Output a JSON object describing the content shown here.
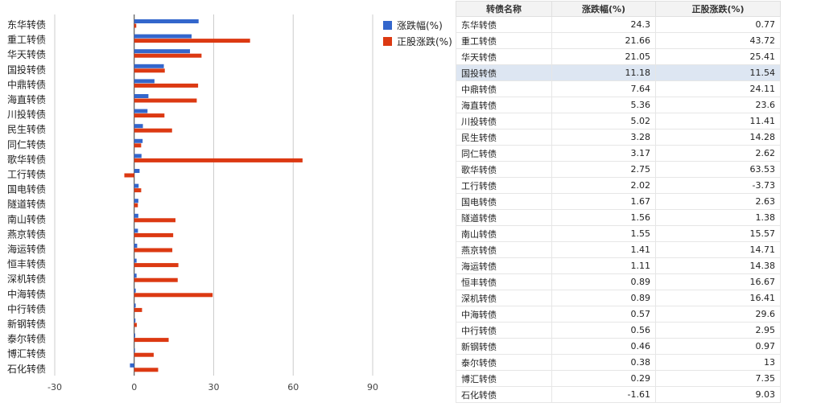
{
  "colors": {
    "change": "#3366cc",
    "stock": "#dc3912",
    "grid": "#cccccc",
    "highlight_row": "#dde6f2"
  },
  "legend": [
    {
      "label": "涨跌幅(%)",
      "color": "#3366cc"
    },
    {
      "label": "正股涨跌(%)",
      "color": "#dc3912"
    }
  ],
  "chart_data": {
    "type": "bar",
    "orientation": "horizontal",
    "categories": [
      "东华转债",
      "重工转债",
      "华天转债",
      "国投转债",
      "中鼎转债",
      "海直转债",
      "川投转债",
      "民生转债",
      "同仁转债",
      "歌华转债",
      "工行转债",
      "国电转债",
      "隧道转债",
      "南山转债",
      "燕京转债",
      "海运转债",
      "恒丰转债",
      "深机转债",
      "中海转债",
      "中行转债",
      "新钢转债",
      "泰尔转债",
      "博汇转债",
      "石化转债"
    ],
    "series": [
      {
        "name": "涨跌幅(%)",
        "values": [
          24.3,
          21.66,
          21.05,
          11.18,
          7.64,
          5.36,
          5.02,
          3.28,
          3.17,
          2.75,
          2.02,
          1.67,
          1.56,
          1.55,
          1.41,
          1.11,
          0.89,
          0.89,
          0.57,
          0.56,
          0.46,
          0.38,
          0.29,
          -1.61
        ]
      },
      {
        "name": "正股涨跌(%)",
        "values": [
          0.77,
          43.72,
          25.41,
          11.54,
          24.11,
          23.6,
          11.41,
          14.28,
          2.62,
          63.53,
          -3.73,
          2.63,
          1.38,
          15.57,
          14.71,
          14.38,
          16.67,
          16.41,
          29.6,
          2.95,
          0.97,
          13,
          7.35,
          9.03
        ]
      }
    ],
    "x_ticks": [
      "-30",
      "0",
      "30",
      "60",
      "90"
    ],
    "xlim": [
      -30,
      90
    ],
    "grid": true,
    "legend_position": "top-right"
  },
  "table": {
    "headers": [
      "转债名称",
      "涨跌幅(%)",
      "正股涨跌(%)"
    ],
    "highlight_index": 3,
    "rows": [
      [
        "东华转债",
        "24.3",
        "0.77"
      ],
      [
        "重工转债",
        "21.66",
        "43.72"
      ],
      [
        "华天转债",
        "21.05",
        "25.41"
      ],
      [
        "国投转债",
        "11.18",
        "11.54"
      ],
      [
        "中鼎转债",
        "7.64",
        "24.11"
      ],
      [
        "海直转债",
        "5.36",
        "23.6"
      ],
      [
        "川投转债",
        "5.02",
        "11.41"
      ],
      [
        "民生转债",
        "3.28",
        "14.28"
      ],
      [
        "同仁转债",
        "3.17",
        "2.62"
      ],
      [
        "歌华转债",
        "2.75",
        "63.53"
      ],
      [
        "工行转债",
        "2.02",
        "-3.73"
      ],
      [
        "国电转债",
        "1.67",
        "2.63"
      ],
      [
        "隧道转债",
        "1.56",
        "1.38"
      ],
      [
        "南山转债",
        "1.55",
        "15.57"
      ],
      [
        "燕京转债",
        "1.41",
        "14.71"
      ],
      [
        "海运转债",
        "1.11",
        "14.38"
      ],
      [
        "恒丰转债",
        "0.89",
        "16.67"
      ],
      [
        "深机转债",
        "0.89",
        "16.41"
      ],
      [
        "中海转债",
        "0.57",
        "29.6"
      ],
      [
        "中行转债",
        "0.56",
        "2.95"
      ],
      [
        "新钢转债",
        "0.46",
        "0.97"
      ],
      [
        "泰尔转债",
        "0.38",
        "13"
      ],
      [
        "博汇转债",
        "0.29",
        "7.35"
      ],
      [
        "石化转债",
        "-1.61",
        "9.03"
      ]
    ]
  }
}
